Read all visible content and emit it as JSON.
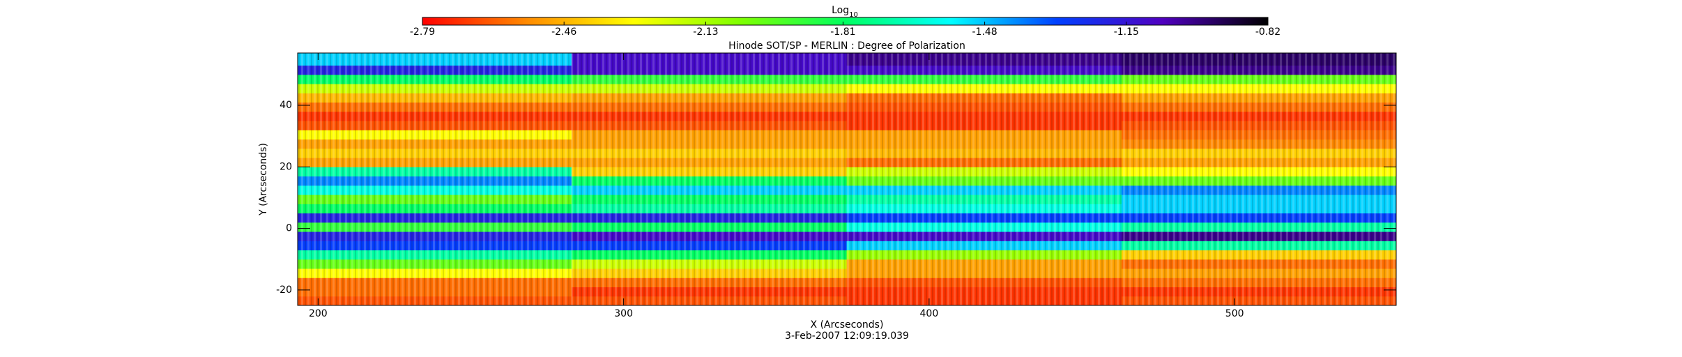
{
  "chart_data": {
    "type": "heatmap",
    "title": "Hinode SOT/SP - MERLIN : Degree of Polarization",
    "x_label": "X (Arcseconds)",
    "y_label": "Y (Arcseconds)",
    "footer": "3-Feb-2007 12:09:19.039",
    "xlim": [
      193.3,
      552.9
    ],
    "ylim": [
      -25,
      57
    ],
    "xticks": [
      200,
      300,
      400,
      500
    ],
    "yticks": [
      -20,
      0,
      20,
      40
    ],
    "xbins": [
      193.3,
      283,
      373,
      463,
      552.9
    ],
    "ybins": [
      -25,
      -22,
      -19,
      -16,
      -13,
      -10,
      -7,
      -4,
      -1,
      2,
      5,
      8,
      11,
      14,
      17,
      20,
      23,
      26,
      29,
      32,
      35,
      38,
      41,
      44,
      47,
      50,
      53,
      57
    ],
    "z": [
      [
        -2.65,
        -2.65,
        -2.7,
        -2.65
      ],
      [
        -2.6,
        -2.7,
        -2.7,
        -2.7
      ],
      [
        -2.6,
        -2.6,
        -2.65,
        -2.6
      ],
      [
        -2.3,
        -2.4,
        -2.5,
        -2.5
      ],
      [
        -2.0,
        -2.2,
        -2.5,
        -2.6
      ],
      [
        -1.7,
        -1.8,
        -2.1,
        -2.4
      ],
      [
        -1.3,
        -1.3,
        -1.5,
        -1.7
      ],
      [
        -1.2,
        -1.1,
        -1.1,
        -1.0
      ],
      [
        -1.9,
        -1.8,
        -1.6,
        -1.7
      ],
      [
        -1.2,
        -1.2,
        -1.3,
        -1.3
      ],
      [
        -1.8,
        -1.7,
        -1.6,
        -1.5
      ],
      [
        -2.0,
        -1.8,
        -1.7,
        -1.5
      ],
      [
        -1.6,
        -1.5,
        -1.5,
        -1.4
      ],
      [
        -1.4,
        -1.8,
        -2.0,
        -2.0
      ],
      [
        -1.7,
        -2.4,
        -2.2,
        -2.3
      ],
      [
        -2.5,
        -2.5,
        -2.6,
        -2.5
      ],
      [
        -2.4,
        -2.4,
        -2.45,
        -2.4
      ],
      [
        -2.5,
        -2.5,
        -2.5,
        -2.55
      ],
      [
        -2.3,
        -2.5,
        -2.5,
        -2.6
      ],
      [
        -2.65,
        -2.65,
        -2.7,
        -2.65
      ],
      [
        -2.7,
        -2.7,
        -2.7,
        -2.7
      ],
      [
        -2.6,
        -2.6,
        -2.65,
        -2.6
      ],
      [
        -2.45,
        -2.5,
        -2.6,
        -2.5
      ],
      [
        -2.2,
        -2.2,
        -2.3,
        -2.3
      ],
      [
        -1.8,
        -1.9,
        -1.9,
        -2.0
      ],
      [
        -1.2,
        -1.1,
        -1.1,
        -1.0
      ],
      [
        -1.5,
        -1.1,
        -1.0,
        -0.95
      ]
    ],
    "colorbar": {
      "title": "Log",
      "title_sub": "10",
      "lim": [
        -2.79,
        -0.82
      ],
      "ticks": [
        -2.79,
        -2.46,
        -2.13,
        -1.81,
        -1.48,
        -1.15,
        -0.82
      ],
      "colormap": [
        "#ff0000",
        "#ff8c00",
        "#ffff00",
        "#80ff00",
        "#00ff60",
        "#00ffff",
        "#0040ff",
        "#5000c0",
        "#000000"
      ]
    }
  }
}
